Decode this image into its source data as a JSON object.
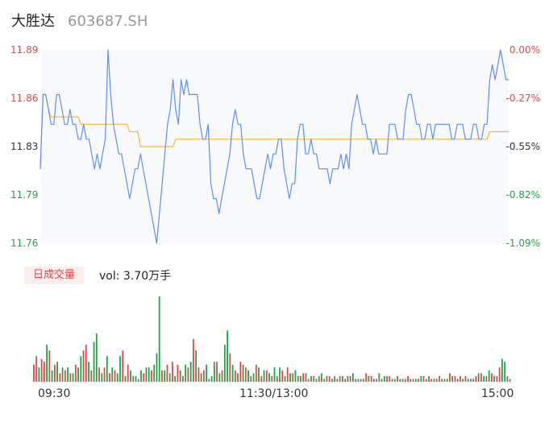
{
  "header": {
    "name": "大胜达",
    "code": "603687.SH"
  },
  "volume_header": {
    "badge": "日成交量",
    "text": "vol: 3.70万手"
  },
  "colors": {
    "price": "#5b8ff9",
    "avg": "#fbb731",
    "up": "#e64545",
    "down": "#1ca545",
    "flat": "#333333",
    "plot_bg": "#f8f9fd"
  },
  "chart_data": [
    {
      "type": "line",
      "y_left_ticks": [
        "11.89",
        "11.86",
        "11.83",
        "11.79",
        "11.76"
      ],
      "y_right_ticks": [
        "0.00%",
        "-0.27%",
        "-0.55%",
        "-0.82%",
        "-1.09%"
      ],
      "tick_colors": [
        "up",
        "up",
        "flat",
        "down",
        "down"
      ],
      "ylim": [
        11.76,
        11.89
      ],
      "x_ticks": [
        "09:30",
        "11:30/13:00",
        "15:00"
      ],
      "series": [
        {
          "role": "price",
          "values": [
            11.81,
            11.86,
            11.86,
            11.85,
            11.84,
            11.84,
            11.86,
            11.86,
            11.85,
            11.84,
            11.84,
            11.85,
            11.84,
            11.84,
            11.83,
            11.83,
            11.84,
            11.83,
            11.83,
            11.82,
            11.81,
            11.82,
            11.81,
            11.82,
            11.83,
            11.89,
            11.86,
            11.84,
            11.83,
            11.82,
            11.82,
            11.81,
            11.8,
            11.79,
            11.8,
            11.81,
            11.81,
            11.82,
            11.81,
            11.8,
            11.79,
            11.78,
            11.77,
            11.76,
            11.78,
            11.8,
            11.82,
            11.84,
            11.85,
            11.87,
            11.85,
            11.84,
            11.87,
            11.86,
            11.87,
            11.86,
            11.86,
            11.86,
            11.86,
            11.84,
            11.83,
            11.83,
            11.84,
            11.8,
            11.79,
            11.79,
            11.78,
            11.79,
            11.8,
            11.81,
            11.82,
            11.84,
            11.85,
            11.84,
            11.84,
            11.82,
            11.81,
            11.81,
            11.81,
            11.8,
            11.79,
            11.79,
            11.8,
            11.81,
            11.82,
            11.81,
            11.82,
            11.82,
            11.83,
            11.83,
            11.81,
            11.8,
            11.79,
            11.8,
            11.8,
            11.83,
            11.84,
            11.84,
            11.82,
            11.82,
            11.83,
            11.82,
            11.82,
            11.81,
            11.81,
            11.81,
            11.81,
            11.8,
            11.81,
            11.81,
            11.81,
            11.82,
            11.81,
            11.82,
            11.81,
            11.84,
            11.85,
            11.86,
            11.85,
            11.84,
            11.84,
            11.83,
            11.83,
            11.82,
            11.83,
            11.82,
            11.82,
            11.82,
            11.82,
            11.84,
            11.84,
            11.84,
            11.83,
            11.83,
            11.83,
            11.85,
            11.86,
            11.86,
            11.85,
            11.84,
            11.84,
            11.83,
            11.83,
            11.84,
            11.84,
            11.83,
            11.84,
            11.84,
            11.84,
            11.84,
            11.84,
            11.84,
            11.83,
            11.83,
            11.84,
            11.84,
            11.84,
            11.83,
            11.83,
            11.83,
            11.84,
            11.84,
            11.83,
            11.83,
            11.84,
            11.84,
            11.87,
            11.88,
            11.87,
            11.88,
            11.89,
            11.88,
            11.87,
            11.87
          ],
          "missing_x_labels": true
        },
        {
          "role": "average",
          "values": [
            11.81,
            11.86,
            11.86,
            11.85,
            11.845,
            11.845,
            11.845,
            11.845,
            11.845,
            11.845,
            11.845,
            11.845,
            11.845,
            11.845,
            11.845,
            11.84,
            11.84,
            11.84,
            11.84,
            11.84,
            11.84,
            11.84,
            11.84,
            11.84,
            11.84,
            11.84,
            11.84,
            11.84,
            11.84,
            11.84,
            11.84,
            11.84,
            11.84,
            11.835,
            11.835,
            11.835,
            11.835,
            11.825,
            11.825,
            11.825,
            11.825,
            11.825,
            11.825,
            11.825,
            11.825,
            11.825,
            11.825,
            11.825,
            11.825,
            11.825,
            11.83,
            11.83,
            11.83,
            11.83,
            11.83,
            11.83,
            11.83,
            11.83,
            11.83,
            11.83,
            11.83,
            11.83,
            11.83,
            11.83,
            11.83,
            11.83,
            11.83,
            11.83,
            11.83,
            11.83,
            11.83,
            11.83,
            11.83,
            11.83,
            11.83,
            11.83,
            11.83,
            11.83,
            11.83,
            11.83,
            11.83,
            11.83,
            11.83,
            11.83,
            11.83,
            11.83,
            11.83,
            11.83,
            11.83,
            11.83,
            11.83,
            11.83,
            11.83,
            11.83,
            11.83,
            11.83,
            11.83,
            11.83,
            11.83,
            11.83,
            11.83,
            11.83,
            11.83,
            11.83,
            11.83,
            11.83,
            11.83,
            11.83,
            11.83,
            11.83,
            11.83,
            11.83,
            11.83,
            11.83,
            11.83,
            11.83,
            11.83,
            11.83,
            11.83,
            11.83,
            11.83,
            11.83,
            11.83,
            11.83,
            11.83,
            11.83,
            11.83,
            11.83,
            11.83,
            11.83,
            11.83,
            11.83,
            11.83,
            11.83,
            11.83,
            11.83,
            11.83,
            11.83,
            11.83,
            11.83,
            11.83,
            11.83,
            11.83,
            11.83,
            11.83,
            11.83,
            11.83,
            11.83,
            11.83,
            11.83,
            11.83,
            11.83,
            11.83,
            11.83,
            11.83,
            11.83,
            11.83,
            11.83,
            11.83,
            11.83,
            11.83,
            11.83,
            11.83,
            11.83,
            11.83,
            11.83,
            11.835,
            11.835,
            11.835,
            11.835,
            11.835,
            11.835,
            11.835,
            11.835
          ]
        }
      ]
    },
    {
      "type": "bar",
      "title": "日成交量",
      "units": "relative",
      "values": [
        6,
        9,
        5,
        8,
        7,
        13,
        11,
        4,
        6,
        7,
        3,
        5,
        4,
        5,
        3,
        3,
        6,
        5,
        9,
        11,
        13,
        7,
        4,
        14,
        17,
        5,
        3,
        5,
        9,
        3,
        5,
        4,
        3,
        9,
        11,
        2,
        6,
        4,
        2,
        2,
        1,
        4,
        3,
        5,
        5,
        4,
        6,
        10,
        30,
        4,
        4,
        6,
        3,
        7,
        2,
        6,
        4,
        2,
        6,
        5,
        7,
        15,
        11,
        5,
        3,
        4,
        6,
        1,
        2,
        7,
        7,
        3,
        4,
        13,
        18,
        10,
        6,
        4,
        3,
        7,
        6,
        5,
        4,
        2,
        3,
        6,
        5,
        2,
        4,
        4,
        3,
        2,
        5,
        2,
        5,
        4,
        2,
        5,
        3,
        3,
        4,
        2,
        2,
        3,
        3,
        1,
        2,
        2,
        1,
        2,
        3,
        1,
        2,
        2,
        1,
        2,
        1,
        2,
        2,
        1,
        2,
        2,
        3,
        1,
        1,
        1,
        1,
        3,
        2,
        2,
        1,
        1,
        3,
        1,
        2,
        2,
        2,
        1,
        1,
        2,
        1,
        1,
        1,
        2,
        1,
        1,
        1,
        1,
        2,
        2,
        1,
        2,
        1,
        1,
        1,
        2,
        1,
        1,
        1,
        3,
        2,
        2,
        1,
        2,
        1,
        2,
        1,
        1,
        1,
        2,
        3,
        3,
        2,
        2,
        4,
        3,
        2,
        2,
        5,
        8,
        7,
        2,
        1
      ],
      "colors": [
        "up",
        "up",
        "down",
        "up",
        "up",
        "down",
        "up",
        "down",
        "up",
        "down",
        "up",
        "down",
        "up",
        "down",
        "up",
        "down",
        "up",
        "down",
        "down",
        "up",
        "up",
        "down",
        "up",
        "down",
        "down",
        "up",
        "down",
        "up",
        "down",
        "up",
        "down",
        "up",
        "down",
        "down",
        "up",
        "down",
        "up",
        "down",
        "up",
        "down",
        "up",
        "down",
        "up",
        "down",
        "down",
        "up",
        "down",
        "down",
        "down",
        "up",
        "down",
        "up",
        "down",
        "up",
        "down",
        "up",
        "down",
        "up",
        "down",
        "up",
        "down",
        "up",
        "down",
        "up",
        "down",
        "up",
        "down",
        "up",
        "down",
        "down",
        "up",
        "down",
        "up",
        "down",
        "down",
        "up",
        "down",
        "up",
        "down",
        "up",
        "down",
        "up",
        "down",
        "up",
        "down",
        "up",
        "down",
        "up",
        "down",
        "up",
        "down",
        "up",
        "down",
        "up",
        "down",
        "up",
        "down",
        "up",
        "down",
        "up",
        "down",
        "up",
        "down",
        "up",
        "down",
        "up",
        "down",
        "up",
        "down",
        "up",
        "down",
        "up",
        "down",
        "up",
        "down",
        "up",
        "down",
        "up",
        "down",
        "up",
        "down",
        "up",
        "down",
        "up",
        "down",
        "up",
        "down",
        "up",
        "down",
        "up",
        "down",
        "up",
        "down",
        "up",
        "down",
        "up",
        "down",
        "up",
        "down",
        "up",
        "down",
        "up",
        "down",
        "up",
        "down",
        "up",
        "down",
        "up",
        "down",
        "up",
        "down",
        "up",
        "down",
        "up",
        "down",
        "up",
        "down",
        "up",
        "down",
        "up",
        "down",
        "up",
        "down",
        "up",
        "down",
        "up",
        "down",
        "up",
        "down",
        "up",
        "down",
        "up",
        "down",
        "up",
        "down",
        "up",
        "down",
        "up",
        "up",
        "down",
        "down",
        "up",
        "down",
        "up"
      ]
    }
  ]
}
